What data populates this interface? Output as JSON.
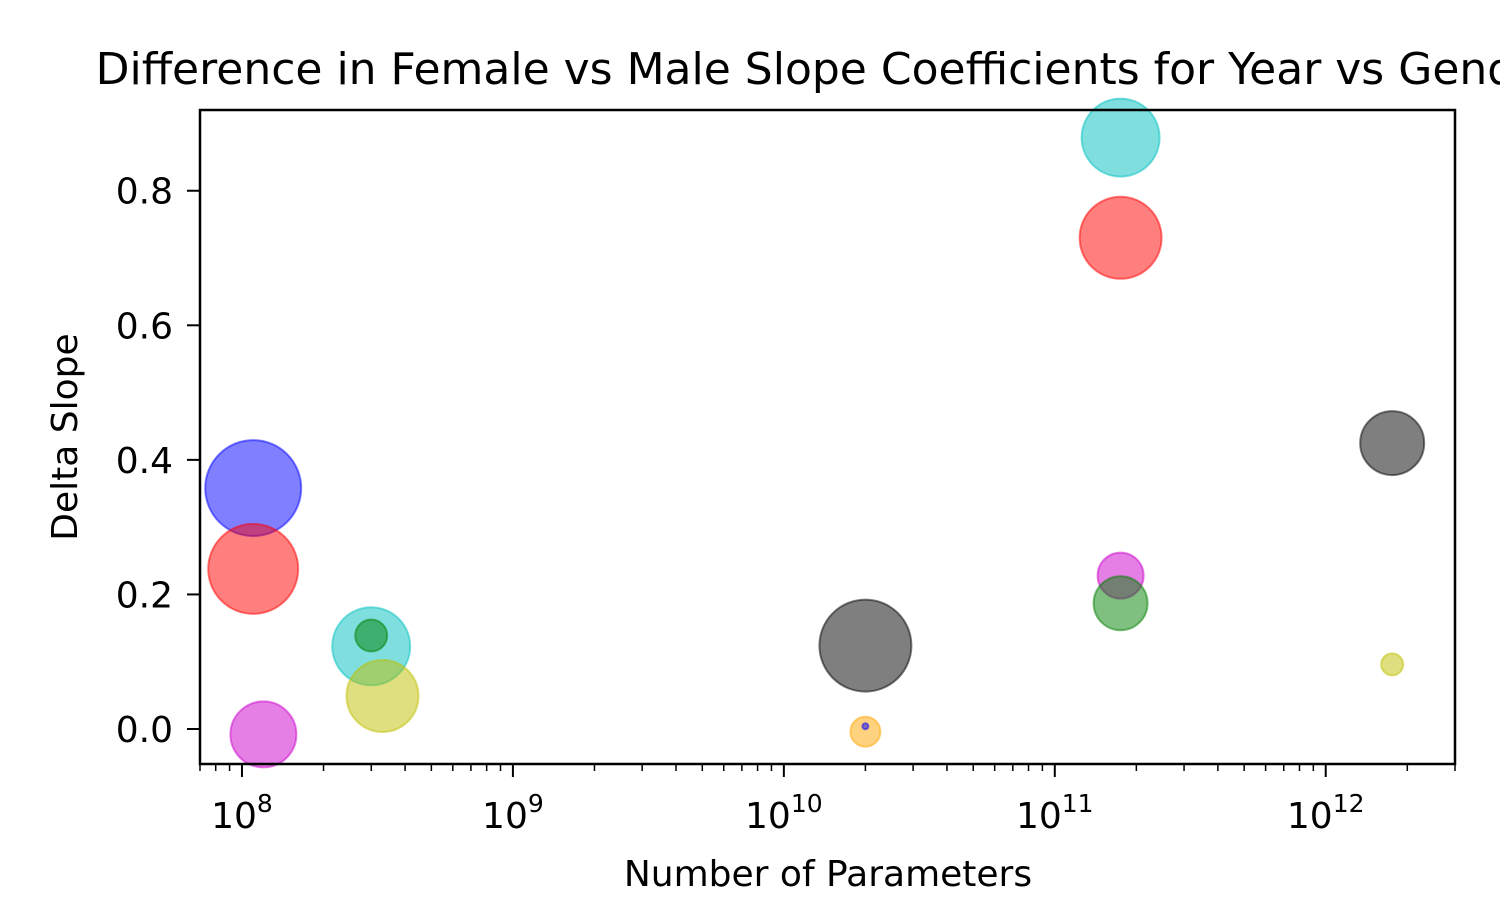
{
  "chart_data": {
    "type": "scatter",
    "title": "Difference in Female vs Male Slope Coefficients for Year vs Gender",
    "xlabel": "Number of Parameters",
    "ylabel": "Delta Slope",
    "xscale": "log",
    "xlim": [
      70000000,
      3000000000000
    ],
    "ylim": [
      -0.052,
      0.92
    ],
    "grid": false,
    "x_ticks": [
      {
        "value": 100000000,
        "base": "10",
        "exp": "8"
      },
      {
        "value": 1000000000,
        "base": "10",
        "exp": "9"
      },
      {
        "value": 10000000000,
        "base": "10",
        "exp": "10"
      },
      {
        "value": 100000000000,
        "base": "10",
        "exp": "11"
      },
      {
        "value": 1000000000000,
        "base": "10",
        "exp": "12"
      }
    ],
    "y_ticks": [
      {
        "value": 0.0,
        "label": "0.0"
      },
      {
        "value": 0.2,
        "label": "0.2"
      },
      {
        "value": 0.4,
        "label": "0.4"
      },
      {
        "value": 0.6,
        "label": "0.6"
      },
      {
        "value": 0.8,
        "label": "0.8"
      }
    ],
    "points": [
      {
        "x": 110000000,
        "y": 0.358,
        "size": 48,
        "color": "#0000ff"
      },
      {
        "x": 110000000,
        "y": 0.238,
        "size": 45,
        "color": "#ff0000"
      },
      {
        "x": 120000000,
        "y": -0.008,
        "size": 33,
        "color": "#cc00cc"
      },
      {
        "x": 300000000,
        "y": 0.123,
        "size": 39,
        "color": "#00bfbf"
      },
      {
        "x": 300000000,
        "y": 0.139,
        "size": 16,
        "color": "#008000"
      },
      {
        "x": 330000000,
        "y": 0.049,
        "size": 36,
        "color": "#bfbf00"
      },
      {
        "x": 20000000000,
        "y": 0.124,
        "size": 46,
        "color": "#000000"
      },
      {
        "x": 20000000000,
        "y": -0.004,
        "size": 15,
        "color": "#ffa500"
      },
      {
        "x": 20000000000,
        "y": 0.004,
        "size": 3,
        "color": "#0000ff"
      },
      {
        "x": 175000000000,
        "y": 0.879,
        "size": 39,
        "color": "#00bfbf"
      },
      {
        "x": 175000000000,
        "y": 0.73,
        "size": 41,
        "color": "#ff0000"
      },
      {
        "x": 175000000000,
        "y": 0.228,
        "size": 23,
        "color": "#cc00cc"
      },
      {
        "x": 175000000000,
        "y": 0.187,
        "size": 27,
        "color": "#008000"
      },
      {
        "x": 1760000000000,
        "y": 0.425,
        "size": 32,
        "color": "#000000"
      },
      {
        "x": 1760000000000,
        "y": 0.096,
        "size": 11,
        "color": "#bfbf00"
      }
    ]
  }
}
